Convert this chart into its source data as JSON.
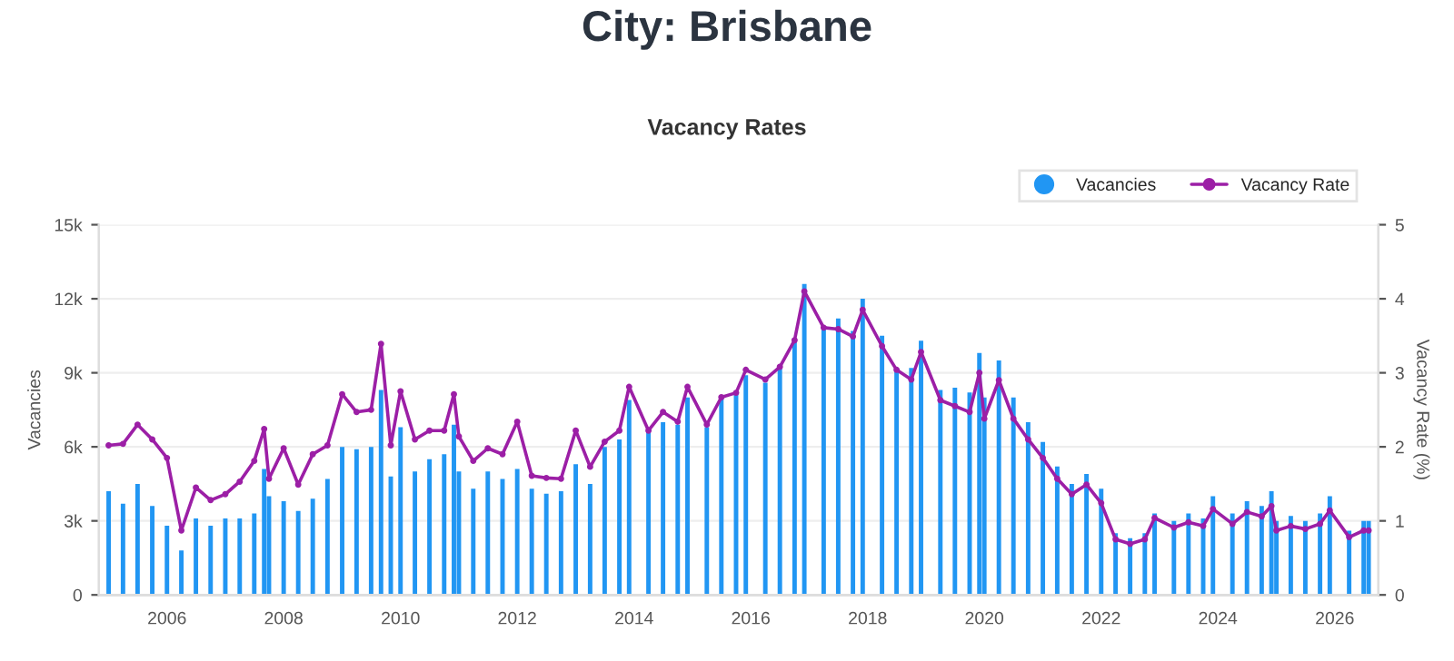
{
  "chart_data": {
    "type": "bar",
    "title": "City: Brisbane",
    "subtitle": "Vacancy Rates",
    "ylabel": "Vacancies",
    "y2label": "Vacancy Rate (%)",
    "x": [
      "2005-01",
      "2005-04",
      "2005-07",
      "2005-10",
      "2006-01",
      "2006-04",
      "2006-07",
      "2006-10",
      "2007-01",
      "2007-04",
      "2007-07",
      "2007-09",
      "2007-10",
      "2008-01",
      "2008-04",
      "2008-07",
      "2008-10",
      "2009-01",
      "2009-04",
      "2009-07",
      "2009-09",
      "2009-11",
      "2010-01",
      "2010-04",
      "2010-07",
      "2010-10",
      "2010-12",
      "2011-01",
      "2011-04",
      "2011-07",
      "2011-10",
      "2012-01",
      "2012-04",
      "2012-07",
      "2012-10",
      "2013-01",
      "2013-04",
      "2013-07",
      "2013-10",
      "2013-12",
      "2014-04",
      "2014-07",
      "2014-10",
      "2014-12",
      "2015-04",
      "2015-07",
      "2015-10",
      "2015-12",
      "2016-04",
      "2016-07",
      "2016-10",
      "2016-12",
      "2017-04",
      "2017-07",
      "2017-10",
      "2017-12",
      "2018-04",
      "2018-07",
      "2018-10",
      "2018-12",
      "2019-04",
      "2019-07",
      "2019-10",
      "2019-12",
      "2020-01",
      "2020-04",
      "2020-07",
      "2020-10",
      "2021-01",
      "2021-04",
      "2021-07",
      "2021-10",
      "2022-01",
      "2022-04",
      "2022-07",
      "2022-10",
      "2022-12",
      "2023-04",
      "2023-07",
      "2023-10",
      "2023-12",
      "2024-04",
      "2024-07",
      "2024-10",
      "2024-12",
      "2025-01",
      "2025-04",
      "2025-07",
      "2025-10",
      "2025-12",
      "2026-04",
      "2026-07",
      "2026-08"
    ],
    "series": [
      {
        "name": "Vacancies",
        "color": "#2196f3",
        "values": [
          4200,
          3700,
          4500,
          3600,
          2800,
          1800,
          3100,
          2800,
          3100,
          3100,
          3300,
          5100,
          4000,
          3800,
          3400,
          3900,
          4700,
          6000,
          5900,
          6000,
          8300,
          4800,
          6800,
          5000,
          5500,
          5700,
          6900,
          5000,
          4300,
          5000,
          4700,
          5100,
          4300,
          4100,
          4200,
          5300,
          4500,
          6000,
          6300,
          7900,
          6600,
          7000,
          6900,
          8000,
          6800,
          8000,
          8200,
          8900,
          8600,
          9200,
          10400,
          12600,
          10900,
          11200,
          10700,
          12000,
          10500,
          9200,
          9200,
          10300,
          8300,
          8400,
          8200,
          9800,
          8000,
          9500,
          8000,
          7000,
          6200,
          5200,
          4500,
          4900,
          4300,
          2500,
          2300,
          2500,
          3300,
          3000,
          3300,
          3100,
          4000,
          3300,
          3800,
          3600,
          4200,
          3000,
          3200,
          3000,
          3300,
          4000,
          2600,
          3000,
          3000
        ]
      },
      {
        "name": "Vacancy Rate",
        "type": "line",
        "axis": "y2",
        "color": "#9c1fa6",
        "marker": "circle",
        "values": [
          2.02,
          2.04,
          2.3,
          2.1,
          1.85,
          0.87,
          1.45,
          1.28,
          1.36,
          1.53,
          1.81,
          2.24,
          1.57,
          1.98,
          1.49,
          1.9,
          2.02,
          2.71,
          2.47,
          2.5,
          3.39,
          2.02,
          2.75,
          2.1,
          2.22,
          2.22,
          2.71,
          2.14,
          1.81,
          1.98,
          1.9,
          2.34,
          1.61,
          1.58,
          1.57,
          2.22,
          1.73,
          2.07,
          2.22,
          2.81,
          2.22,
          2.47,
          2.34,
          2.81,
          2.3,
          2.67,
          2.73,
          3.04,
          2.91,
          3.08,
          3.44,
          4.1,
          3.61,
          3.59,
          3.49,
          3.85,
          3.36,
          3.04,
          2.91,
          3.28,
          2.63,
          2.55,
          2.47,
          3.0,
          2.38,
          2.9,
          2.38,
          2.1,
          1.85,
          1.57,
          1.36,
          1.49,
          1.24,
          0.75,
          0.69,
          0.75,
          1.04,
          0.91,
          0.98,
          0.93,
          1.16,
          0.96,
          1.12,
          1.06,
          1.2,
          0.87,
          0.93,
          0.89,
          0.96,
          1.14,
          0.78,
          0.87,
          0.87
        ]
      }
    ],
    "xlim": [
      "2004-11",
      "2026-10"
    ],
    "xticks": [
      {
        "value": "2006",
        "label": "2006"
      },
      {
        "value": "2008",
        "label": "2008"
      },
      {
        "value": "2010",
        "label": "2010"
      },
      {
        "value": "2012",
        "label": "2012"
      },
      {
        "value": "2014",
        "label": "2014"
      },
      {
        "value": "2016",
        "label": "2016"
      },
      {
        "value": "2018",
        "label": "2018"
      },
      {
        "value": "2020",
        "label": "2020"
      },
      {
        "value": "2022",
        "label": "2022"
      },
      {
        "value": "2024",
        "label": "2024"
      },
      {
        "value": "2026",
        "label": "2026"
      }
    ],
    "ylim": [
      0,
      15000
    ],
    "yticks": [
      0,
      {
        "value": 3000,
        "label": "3k"
      },
      {
        "value": 6000,
        "label": "6k"
      },
      {
        "value": 9000,
        "label": "9k"
      },
      {
        "value": 12000,
        "label": "12k"
      },
      {
        "value": 15000,
        "label": "15k"
      }
    ],
    "y2lim": [
      0,
      5
    ],
    "y2ticks": [
      0,
      1,
      2,
      3,
      4,
      5
    ],
    "grid": "y",
    "legend": "top right"
  }
}
